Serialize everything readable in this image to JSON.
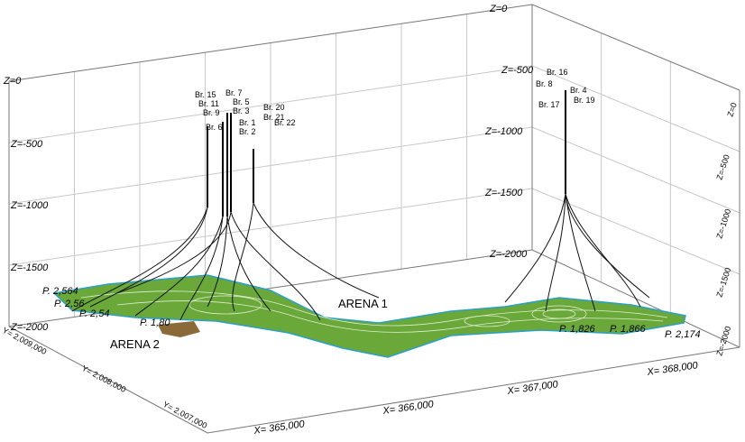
{
  "z_labels": {
    "left": [
      "Z=0",
      "Z=-500",
      "Z=-1000",
      "Z=-1500",
      "Z=-2000"
    ],
    "back": [
      "Z=0",
      "Z=-500",
      "Z=-1000",
      "Z=-1500",
      "Z=-2000"
    ],
    "right": [
      "Z=0",
      "Z=-500",
      "Z=-1000",
      "Z=-1500",
      "Z=-2000"
    ]
  },
  "x_labels": [
    "X= 365,000",
    "X= 366,000",
    "X= 367,000",
    "X= 368,000"
  ],
  "y_labels": [
    "Y= 2,009,000",
    "Y= 2,008,000",
    "Y= 2,007,000"
  ],
  "wells": [
    "Br. 15",
    "Br. 11",
    "Br. 9",
    "Br. 7",
    "Br. 5",
    "Br. 3",
    "Br. 6",
    "Br. 1",
    "Br. 2",
    "Br. 20",
    "Br. 21",
    "Br. 22",
    "Br. 16",
    "Br. 8",
    "Br. 4",
    "Br. 17",
    "Br. 19"
  ],
  "zones": [
    "ARENA 1",
    "ARENA 2"
  ],
  "pressures": [
    "P. 2,564",
    "P. 2,56",
    "P. 2,54",
    "P. 1,80",
    "P. 1,826",
    "P. 1,866",
    "P. 2,174"
  ]
}
